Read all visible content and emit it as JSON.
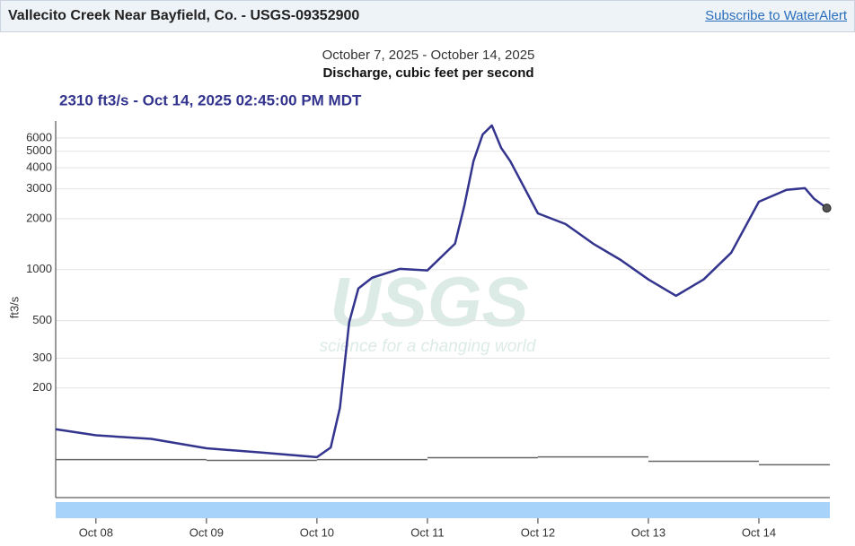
{
  "header": {
    "title": "Vallecito Creek Near Bayfield, Co. - USGS-09352900",
    "link": "Subscribe to WaterAlert"
  },
  "chart_data": {
    "type": "line",
    "title": "October 7, 2025 - October 14, 2025",
    "subtitle": "Discharge, cubic feet per second",
    "readout": "2310 ft3/s - Oct 14, 2025 02:45:00 PM MDT",
    "ylabel": "ft3/s",
    "watermark": [
      "USGS",
      "science for a changing world"
    ],
    "log_y": true,
    "grid": true,
    "xlim": [
      "2025-10-07T15:15",
      "2025-10-14T15:25"
    ],
    "xticks": [
      {
        "value": "2025-10-08T00:00",
        "label": "Oct 08"
      },
      {
        "value": "2025-10-09T00:00",
        "label": "Oct 09"
      },
      {
        "value": "2025-10-10T00:00",
        "label": "Oct 10"
      },
      {
        "value": "2025-10-11T00:00",
        "label": "Oct 11"
      },
      {
        "value": "2025-10-12T00:00",
        "label": "Oct 12"
      },
      {
        "value": "2025-10-13T00:00",
        "label": "Oct 13"
      },
      {
        "value": "2025-10-14T00:00",
        "label": "Oct 14"
      }
    ],
    "ylim": [
      45,
      7550
    ],
    "yticks": [
      200,
      300,
      500,
      1000,
      2000,
      3000,
      4000,
      5000,
      6000
    ],
    "series": [
      {
        "color": "#33348e",
        "x": [
          "2025-10-07T15:15",
          "2025-10-08T00:00",
          "2025-10-08T12:00",
          "2025-10-09T00:00",
          "2025-10-09T12:00",
          "2025-10-10T00:00",
          "2025-10-10T03:00",
          "2025-10-10T05:00",
          "2025-10-10T07:00",
          "2025-10-10T09:00",
          "2025-10-10T12:00",
          "2025-10-10T18:00",
          "2025-10-11T00:00",
          "2025-10-11T06:00",
          "2025-10-11T08:00",
          "2025-10-11T10:00",
          "2025-10-11T12:00",
          "2025-10-11T14:00",
          "2025-10-11T16:00",
          "2025-10-11T18:00",
          "2025-10-12T00:00",
          "2025-10-12T06:00",
          "2025-10-12T12:00",
          "2025-10-12T18:00",
          "2025-10-13T00:00",
          "2025-10-13T06:00",
          "2025-10-13T12:00",
          "2025-10-13T18:00",
          "2025-10-14T00:00",
          "2025-10-14T06:00",
          "2025-10-14T10:00",
          "2025-10-14T12:00",
          "2025-10-14T14:45"
        ],
        "values": [
          114,
          105,
          100,
          88,
          83,
          78,
          89,
          153,
          488,
          774,
          896,
          1010,
          990,
          1424,
          2375,
          4370,
          6290,
          7110,
          5250,
          4370,
          2150,
          1860,
          1424,
          1140,
          875,
          700,
          875,
          1260,
          2520,
          2960,
          3030,
          2620,
          2310
        ]
      },
      {
        "color": "#666666",
        "x": [
          "2025-10-07T15:15",
          "2025-10-09T00:00",
          "2025-10-10T00:00",
          "2025-10-11T00:00",
          "2025-10-12T00:00",
          "2025-10-13T00:00",
          "2025-10-14T00:00"
        ],
        "values": [
          75.5,
          74.6,
          75.5,
          77.4,
          78.3,
          73.8,
          70.3
        ]
      }
    ]
  }
}
